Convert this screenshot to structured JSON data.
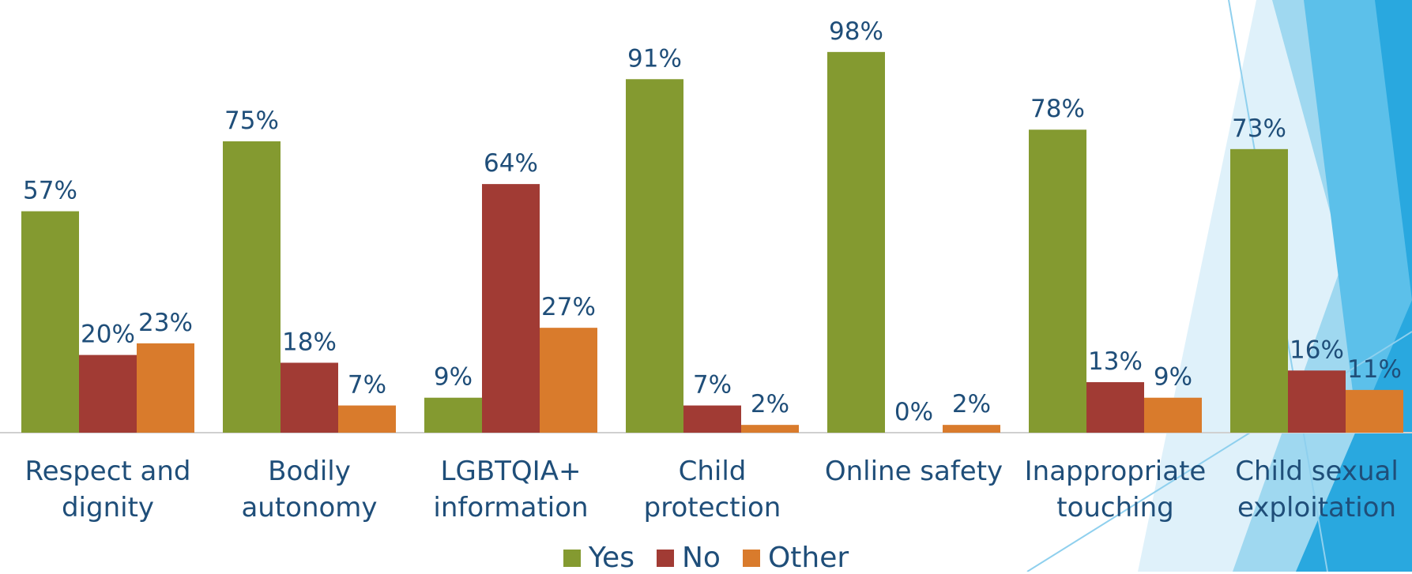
{
  "chart_data": {
    "type": "bar",
    "categories": [
      "Respect and dignity",
      "Bodily autonomy",
      "LGBTQIA+ information",
      "Child protection",
      "Online safety",
      "Inappropriate touching",
      "Child sexual exploitation"
    ],
    "series": [
      {
        "name": "Yes",
        "color": "#849a30",
        "values": [
          57,
          75,
          9,
          91,
          98,
          78,
          73
        ],
        "value_labels": [
          "57%",
          "75%",
          "9%",
          "91%",
          "98%",
          "78%",
          "73%"
        ]
      },
      {
        "name": "No",
        "color": "#a13b34",
        "values": [
          20,
          18,
          64,
          7,
          0,
          13,
          16
        ],
        "value_labels": [
          "20%",
          "18%",
          "64%",
          "7%",
          "0%",
          "13%",
          "16%"
        ]
      },
      {
        "name": "Other",
        "color": "#d97b2c",
        "values": [
          23,
          7,
          27,
          2,
          2,
          9,
          11
        ],
        "value_labels": [
          "23%",
          "7%",
          "27%",
          "2%",
          "2%",
          "9%",
          "11%"
        ]
      }
    ]
  }
}
